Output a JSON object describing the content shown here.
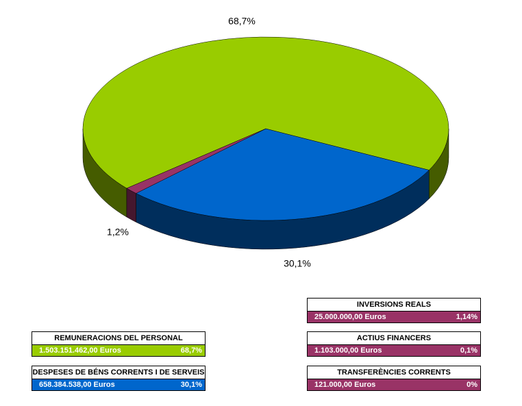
{
  "chart_data": {
    "type": "pie",
    "values": [
      68.7,
      30.1,
      1.2
    ],
    "value_labels": [
      "68,7%",
      "30,1%",
      "1,2%"
    ],
    "colors": [
      "#99cc00",
      "#0066cc",
      "#993366"
    ]
  },
  "legend_boxes": [
    {
      "title": "REMUNERACIONS DEL PERSONAL",
      "amount": "1.503.151.462,00 Euros",
      "percent": "68,7%",
      "color": "#99cc00"
    },
    {
      "title": "DESPESES DE BÉNS CORRENTS I DE SERVEIS",
      "amount": "658.384.538,00 Euros",
      "percent": "30,1%",
      "color": "#0066cc"
    },
    {
      "title": "INVERSIONS REALS",
      "amount": "25.000.000,00 Euros",
      "percent": "1,14%",
      "color": "#993366"
    },
    {
      "title": "ACTIUS FINANCERS",
      "amount": "1.103.000,00 Euros",
      "percent": "0,1%",
      "color": "#993366"
    },
    {
      "title": "TRANSFERÈNCIES CORRENTS",
      "amount": "121.000,00 Euros",
      "percent": "0%",
      "color": "#993366"
    }
  ]
}
